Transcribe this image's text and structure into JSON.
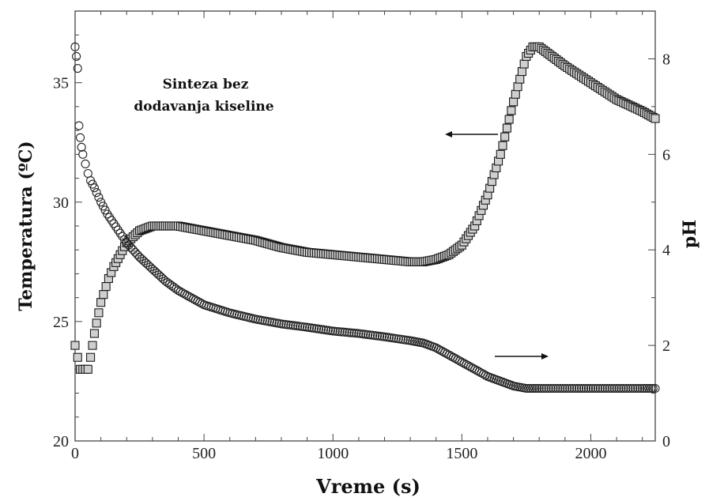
{
  "chart_data": {
    "type": "scatter",
    "title": "",
    "xlabel": "Vreme (s)",
    "ylabel": "Temperatura (ºC)",
    "y2label": "pH",
    "xlim": [
      0,
      2250
    ],
    "ylim": [
      20,
      38
    ],
    "y2lim": [
      0,
      9
    ],
    "x_ticks": [
      0,
      500,
      1000,
      1500,
      2000
    ],
    "y_ticks": [
      20,
      25,
      30,
      35
    ],
    "y2_ticks": [
      0,
      2,
      4,
      6,
      8
    ],
    "grid": false,
    "annotation": [
      "Sinteza bez",
      "dodavanja kiseline"
    ],
    "series": [
      {
        "axis": "left",
        "marker": "square",
        "x": [
          0,
          20,
          30,
          50,
          60,
          75,
          100,
          130,
          150,
          175,
          200,
          250,
          300,
          350,
          400,
          500,
          600,
          700,
          800,
          900,
          1000,
          1100,
          1200,
          1300,
          1350,
          1400,
          1450,
          1500,
          1550,
          1600,
          1650,
          1700,
          1750,
          1775,
          1800,
          1850,
          1900,
          2000,
          2100,
          2200,
          2250
        ],
        "y": [
          24.0,
          23.0,
          23.0,
          23.0,
          23.5,
          24.5,
          25.8,
          26.8,
          27.3,
          27.8,
          28.3,
          28.8,
          29.0,
          29.0,
          29.0,
          28.8,
          28.6,
          28.4,
          28.1,
          27.9,
          27.8,
          27.7,
          27.6,
          27.5,
          27.5,
          27.6,
          27.8,
          28.2,
          29.0,
          30.3,
          32.0,
          34.2,
          36.1,
          36.5,
          36.5,
          36.1,
          35.7,
          35.0,
          34.3,
          33.8,
          33.5
        ]
      },
      {
        "axis": "right",
        "marker": "circle",
        "x": [
          0,
          5,
          10,
          15,
          20,
          25,
          30,
          40,
          50,
          60,
          75,
          100,
          125,
          150,
          175,
          200,
          250,
          300,
          350,
          400,
          450,
          500,
          600,
          700,
          800,
          900,
          1000,
          1100,
          1200,
          1300,
          1350,
          1400,
          1450,
          1500,
          1550,
          1600,
          1650,
          1700,
          1750,
          1800,
          1900,
          2000,
          2100,
          2200,
          2250
        ],
        "y": [
          8.25,
          8.05,
          7.8,
          6.6,
          6.35,
          6.15,
          6.0,
          5.8,
          5.6,
          5.45,
          5.3,
          5.0,
          4.75,
          4.55,
          4.35,
          4.15,
          3.85,
          3.6,
          3.35,
          3.15,
          3.0,
          2.85,
          2.68,
          2.55,
          2.45,
          2.38,
          2.3,
          2.25,
          2.18,
          2.1,
          2.05,
          1.95,
          1.8,
          1.65,
          1.5,
          1.35,
          1.25,
          1.15,
          1.1,
          1.1,
          1.1,
          1.1,
          1.1,
          1.1,
          1.1
        ]
      }
    ]
  }
}
